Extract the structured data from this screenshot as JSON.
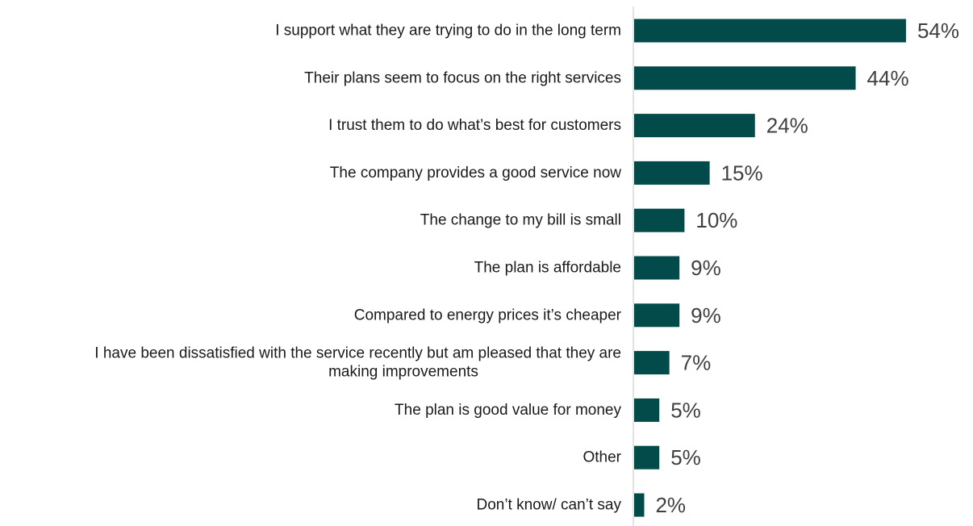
{
  "chart_data": {
    "type": "bar",
    "orientation": "horizontal",
    "categories": [
      "I support what they are trying to do in the long term",
      "Their plans seem to focus on the right services",
      "I trust them to do what’s best for customers",
      "The company provides a good service now",
      "The change to my bill is small",
      "The plan is affordable",
      "Compared to energy prices it’s cheaper",
      "I have been dissatisfied with the service recently but am pleased that they are making improvements",
      "The plan is good value for money",
      "Other",
      "Don’t know/ can’t say"
    ],
    "category_lines": [
      [
        "I support what they are trying to do in the long term"
      ],
      [
        "Their plans seem to focus on the right services"
      ],
      [
        "I trust them to do what’s best for customers"
      ],
      [
        "The company provides a good service now"
      ],
      [
        "The change to my bill is small"
      ],
      [
        "The plan is affordable"
      ],
      [
        "Compared to energy prices it’s cheaper"
      ],
      [
        "I have been dissatisfied with the service recently but am pleased that they are",
        "making improvements"
      ],
      [
        "The plan is good value for money"
      ],
      [
        "Other"
      ],
      [
        "Don’t know/ can’t say"
      ]
    ],
    "values": [
      54,
      44,
      24,
      15,
      10,
      9,
      9,
      7,
      5,
      5,
      2
    ],
    "value_labels": [
      "54%",
      "44%",
      "24%",
      "15%",
      "10%",
      "9%",
      "9%",
      "7%",
      "5%",
      "5%",
      "2%"
    ],
    "unit": "%",
    "xlim": [
      0,
      60
    ],
    "grid": false,
    "bar_color": "#034a4b",
    "axis_color": "#d9d9d9"
  }
}
